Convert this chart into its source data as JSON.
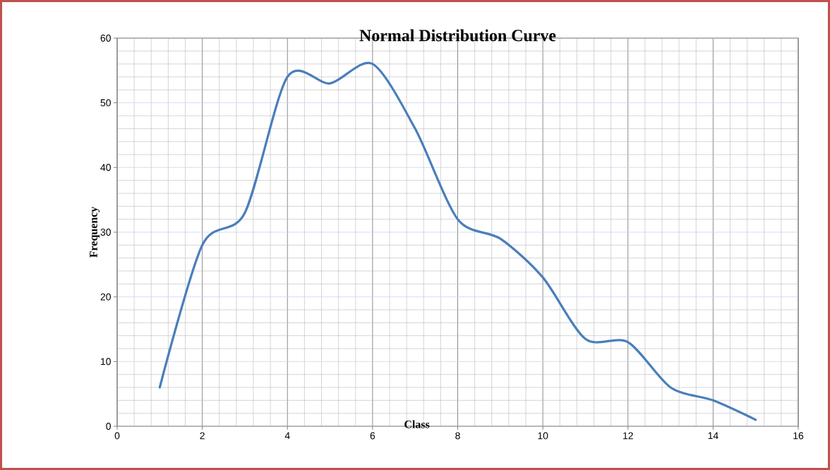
{
  "chart_data": {
    "type": "line",
    "title": "Normal Distribution Curve",
    "xlabel": "Class",
    "ylabel": "Frequency",
    "x": [
      1,
      2,
      3,
      4,
      5,
      6,
      7,
      8,
      9,
      10,
      11,
      12,
      13,
      14,
      15
    ],
    "series": [
      {
        "color": "#4a7ebb",
        "values": [
          6,
          28,
          33,
          54,
          53,
          56,
          46,
          32,
          29,
          23,
          13.5,
          13,
          6,
          4,
          1
        ]
      }
    ],
    "xlim": [
      0,
      16
    ],
    "ylim": [
      0,
      60
    ],
    "xticks": [
      0,
      2,
      4,
      6,
      8,
      10,
      12,
      14,
      16
    ],
    "yticks": [
      0,
      10,
      20,
      30,
      40,
      50,
      60
    ],
    "grid": true,
    "marker": "none",
    "line_style": "solid"
  }
}
